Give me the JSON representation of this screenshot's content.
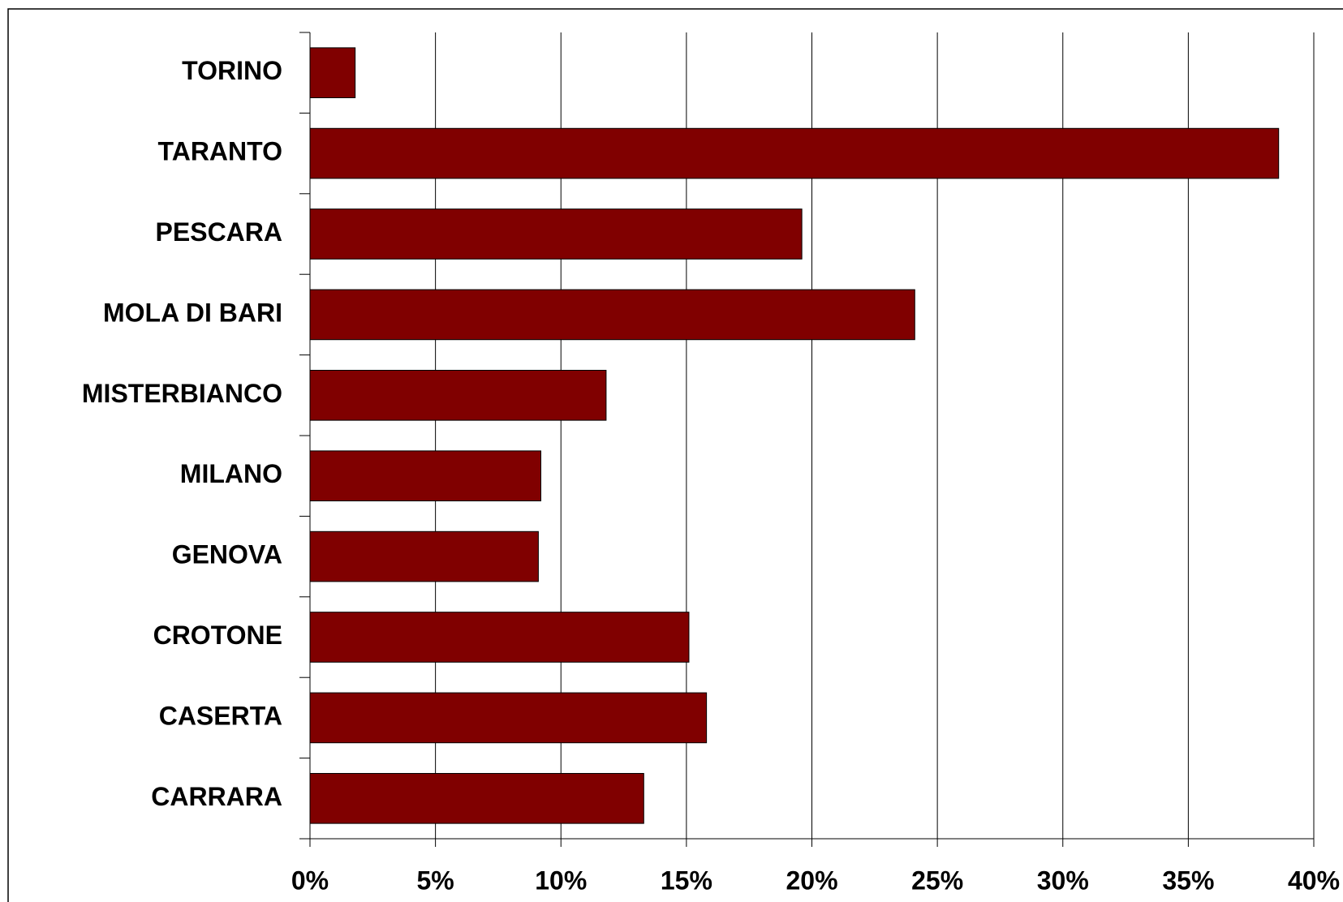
{
  "chart_data": {
    "type": "bar",
    "orientation": "horizontal",
    "categories": [
      "TORINO",
      "TARANTO",
      "PESCARA",
      "MOLA DI BARI",
      "MISTERBIANCO",
      "MILANO",
      "GENOVA",
      "CROTONE",
      "CASERTA",
      "CARRARA"
    ],
    "values": [
      1.8,
      38.6,
      19.6,
      24.1,
      11.8,
      9.2,
      9.1,
      15.1,
      15.8,
      13.3
    ],
    "color": "#800000",
    "xlim": [
      0,
      40
    ],
    "xticks": [
      {
        "value": 0,
        "label": "0%"
      },
      {
        "value": 5,
        "label": "5%"
      },
      {
        "value": 10,
        "label": "10%"
      },
      {
        "value": 15,
        "label": "15%"
      },
      {
        "value": 20,
        "label": "20%"
      },
      {
        "value": 25,
        "label": "25%"
      },
      {
        "value": 30,
        "label": "30%"
      },
      {
        "value": 35,
        "label": "35%"
      },
      {
        "value": 40,
        "label": "40%"
      }
    ],
    "grid": true
  }
}
